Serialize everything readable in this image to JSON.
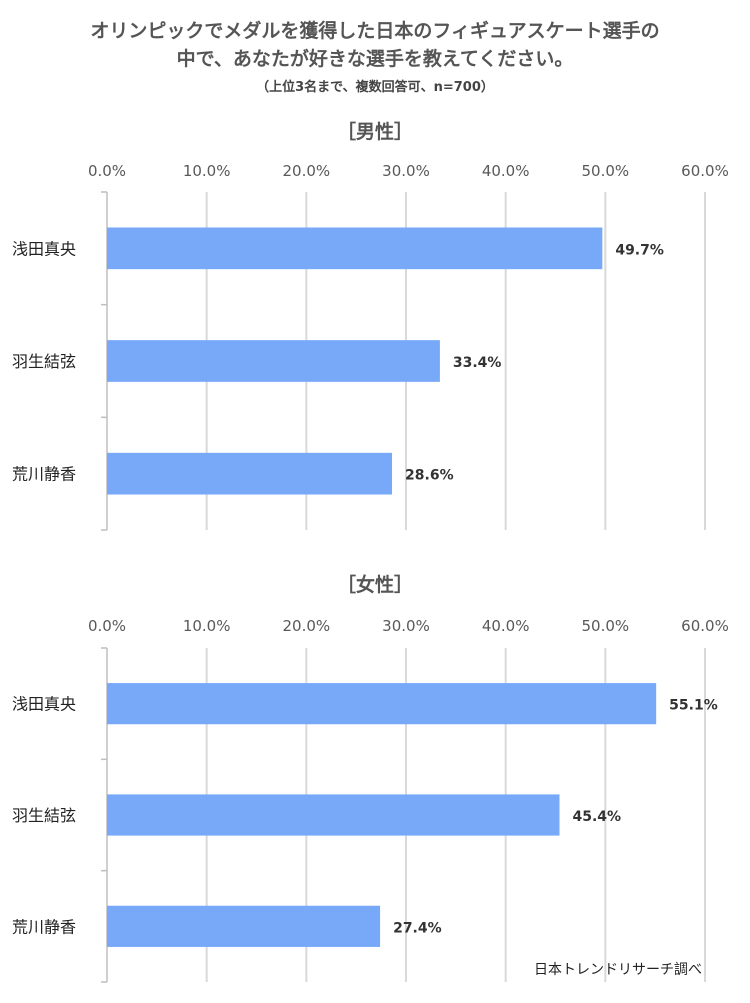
{
  "header": {
    "title_line1": "オリンピックでメダルを獲得した日本のフィギュアスケート選手の",
    "title_line2": "中で、あなたが好きな選手を教えてください。",
    "subtitle": "（上位3名まで、複数回答可、n=700）"
  },
  "source": "日本トレンドリサーチ調べ",
  "colors": {
    "bar": "#77a9f8",
    "grid": "#d9d9d9",
    "axis": "#bfbfbf",
    "tick": "#595959"
  },
  "chart_data": [
    {
      "type": "bar",
      "orientation": "horizontal",
      "title": "［男性］",
      "categories": [
        "浅田真央",
        "羽生結弦",
        "荒川静香"
      ],
      "values": [
        49.7,
        33.4,
        28.6
      ],
      "value_labels": [
        "49.7%",
        "33.4%",
        "28.6%"
      ],
      "xticks": [
        "0.0%",
        "10.0%",
        "20.0%",
        "30.0%",
        "40.0%",
        "50.0%",
        "60.0%"
      ],
      "xlim": [
        0,
        60
      ],
      "grid": true
    },
    {
      "type": "bar",
      "orientation": "horizontal",
      "title": "［女性］",
      "categories": [
        "浅田真央",
        "羽生結弦",
        "荒川静香"
      ],
      "values": [
        55.1,
        45.4,
        27.4
      ],
      "value_labels": [
        "55.1%",
        "45.4%",
        "27.4%"
      ],
      "xticks": [
        "0.0%",
        "10.0%",
        "20.0%",
        "30.0%",
        "40.0%",
        "50.0%",
        "60.0%"
      ],
      "xlim": [
        0,
        60
      ],
      "grid": true
    }
  ]
}
